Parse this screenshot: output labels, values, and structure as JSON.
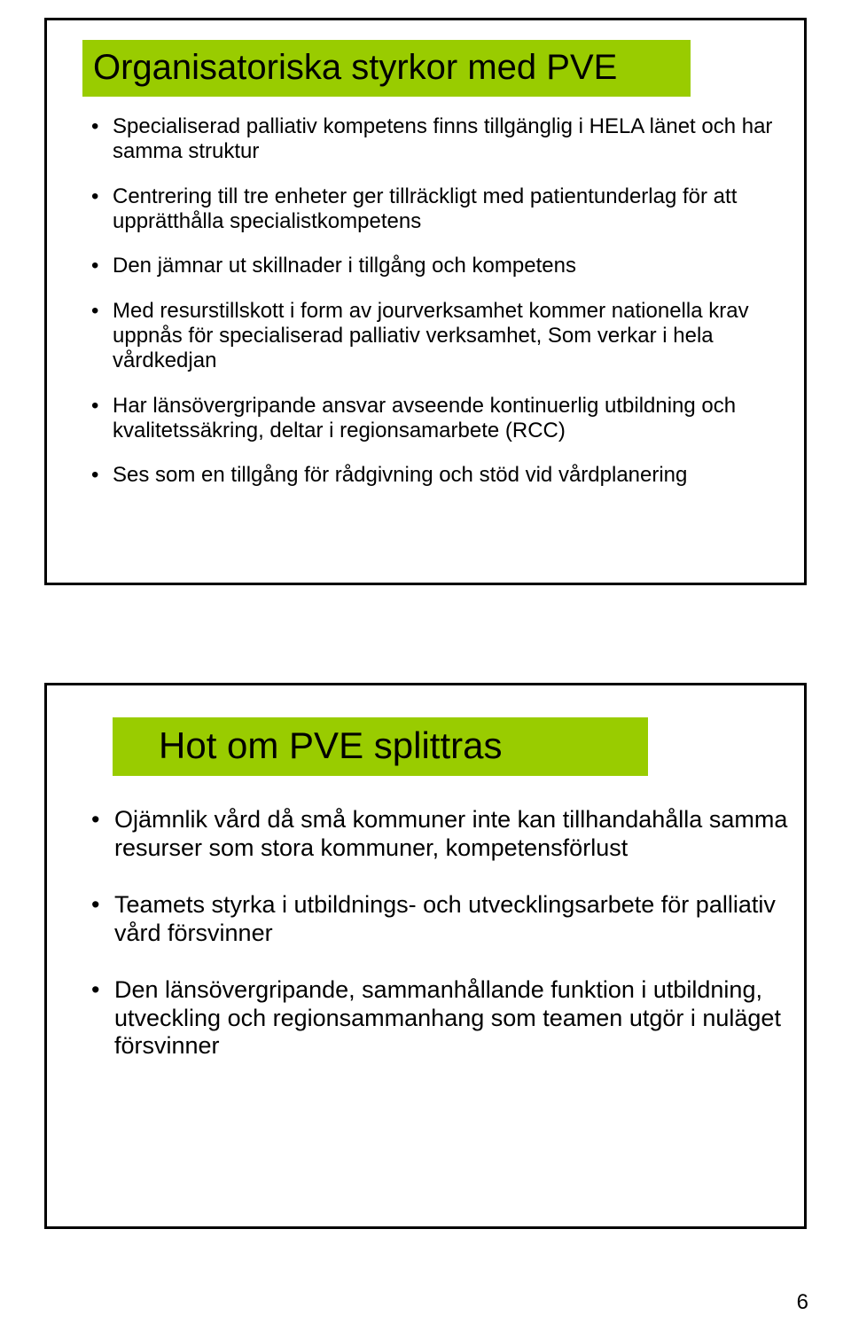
{
  "colors": {
    "banner_bg": "#99cc00",
    "border": "#000000",
    "text": "#000000",
    "page_bg": "#ffffff"
  },
  "typography": {
    "title_fontsize_pt": 30,
    "body_fontsize_pt_slide1": 18,
    "body_fontsize_pt_slide2": 20,
    "font_family": "Arial"
  },
  "page_number": "6",
  "slide1": {
    "title": "Organisatoriska styrkor med PVE",
    "bullets": [
      "Specialiserad palliativ kompetens finns tillgänglig i HELA länet och har samma struktur",
      "Centrering till tre enheter ger tillräckligt med patientunderlag för att upprätthålla specialistkompetens",
      "Den jämnar ut skillnader i tillgång och kompetens",
      "Med resurstillskott i form av jourverksamhet kommer nationella krav uppnås för specialiserad palliativ verksamhet, Som verkar i hela vårdkedjan",
      "Har länsövergripande ansvar avseende kontinuerlig utbildning och kvalitetssäkring, deltar i regionsamarbete (RCC)",
      "Ses som en tillgång för rådgivning och stöd vid vårdplanering"
    ]
  },
  "slide2": {
    "title": "Hot om PVE splittras",
    "bullets": [
      "Ojämnlik vård då små kommuner inte kan tillhandahålla samma resurser som stora kommuner, kompetensförlust",
      "Teamets styrka i utbildnings- och utvecklingsarbete för palliativ vård försvinner",
      "Den länsövergripande, sammanhållande funktion i utbildning, utveckling och regionsammanhang som teamen utgör i nuläget försvinner"
    ]
  }
}
